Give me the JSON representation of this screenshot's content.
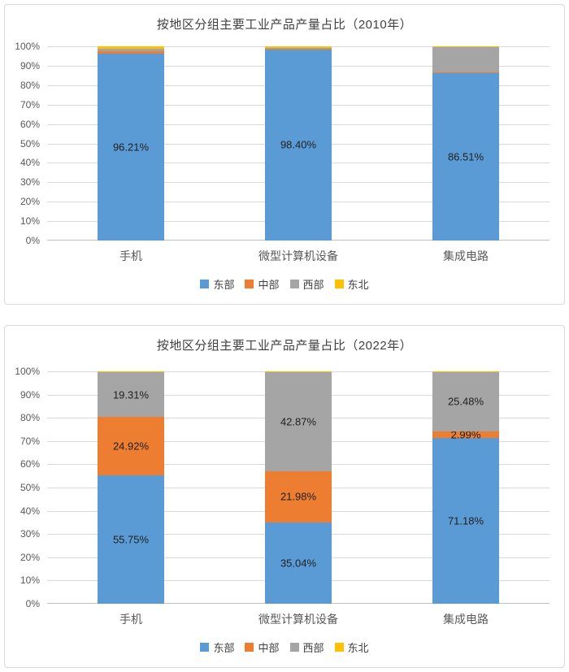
{
  "chart_data": [
    {
      "type": "bar",
      "variant": "stacked-100-percent",
      "title": "按地区分组主要工业产品产量占比（2010年）",
      "categories": [
        "手机",
        "微型计算机设备",
        "集成电路"
      ],
      "xlabel": "",
      "ylabel": "",
      "ylim": [
        0,
        100
      ],
      "yticks": [
        "100%",
        "90%",
        "80%",
        "70%",
        "60%",
        "50%",
        "40%",
        "30%",
        "20%",
        "10%",
        "0%"
      ],
      "grid": true,
      "legend_position": "bottom",
      "series": [
        {
          "name": "东部",
          "key": "east",
          "color": "#5B9BD5",
          "values": [
            96.21,
            98.4,
            86.51
          ],
          "data_labels": [
            "96.21%",
            "98.40%",
            "86.51%"
          ],
          "estimated": false
        },
        {
          "name": "中部",
          "key": "central",
          "color": "#ED7D31",
          "values": [
            1.15,
            0.5,
            0.2
          ],
          "data_labels": [
            "",
            "",
            ""
          ],
          "estimated": true
        },
        {
          "name": "西部",
          "key": "west",
          "color": "#A5A5A5",
          "values": [
            1.4,
            0.4,
            12.8
          ],
          "data_labels": [
            "",
            "",
            ""
          ],
          "estimated": true
        },
        {
          "name": "东北",
          "key": "northeast",
          "color": "#FFC000",
          "values": [
            1.24,
            0.7,
            0.49
          ],
          "data_labels": [
            "",
            "",
            ""
          ],
          "estimated": true
        }
      ]
    },
    {
      "type": "bar",
      "variant": "stacked-100-percent",
      "title": "按地区分组主要工业产品产量占比（2022年）",
      "categories": [
        "手机",
        "微型计算机设备",
        "集成电路"
      ],
      "xlabel": "",
      "ylabel": "",
      "ylim": [
        0,
        100
      ],
      "yticks": [
        "100%",
        "90%",
        "80%",
        "70%",
        "60%",
        "50%",
        "40%",
        "30%",
        "20%",
        "10%",
        "0%"
      ],
      "grid": true,
      "legend_position": "bottom",
      "series": [
        {
          "name": "东部",
          "key": "east",
          "color": "#5B9BD5",
          "values": [
            55.75,
            35.04,
            71.18
          ],
          "data_labels": [
            "55.75%",
            "35.04%",
            "71.18%"
          ],
          "estimated": false
        },
        {
          "name": "中部",
          "key": "central",
          "color": "#ED7D31",
          "values": [
            24.92,
            21.98,
            2.99
          ],
          "data_labels": [
            "24.92%",
            "21.98%",
            "2.99%"
          ],
          "estimated": false
        },
        {
          "name": "西部",
          "key": "west",
          "color": "#A5A5A5",
          "values": [
            19.31,
            42.87,
            25.48
          ],
          "data_labels": [
            "19.31%",
            "42.87%",
            "25.48%"
          ],
          "estimated": false
        },
        {
          "name": "东北",
          "key": "northeast",
          "color": "#FFC000",
          "values": [
            0.02,
            0.11,
            0.35
          ],
          "data_labels": [
            "",
            "",
            ""
          ],
          "estimated": true
        }
      ]
    }
  ],
  "colors": {
    "east": "#5B9BD5",
    "central": "#ED7D31",
    "west": "#A5A5A5",
    "northeast": "#FFC000",
    "gridline": "#d9d9d9",
    "axis_line": "#bfbfbf",
    "axis_text": "#595959",
    "title_text": "#404040",
    "data_label_text": "#1f1f1f",
    "panel_border": "#d9d9d9"
  }
}
